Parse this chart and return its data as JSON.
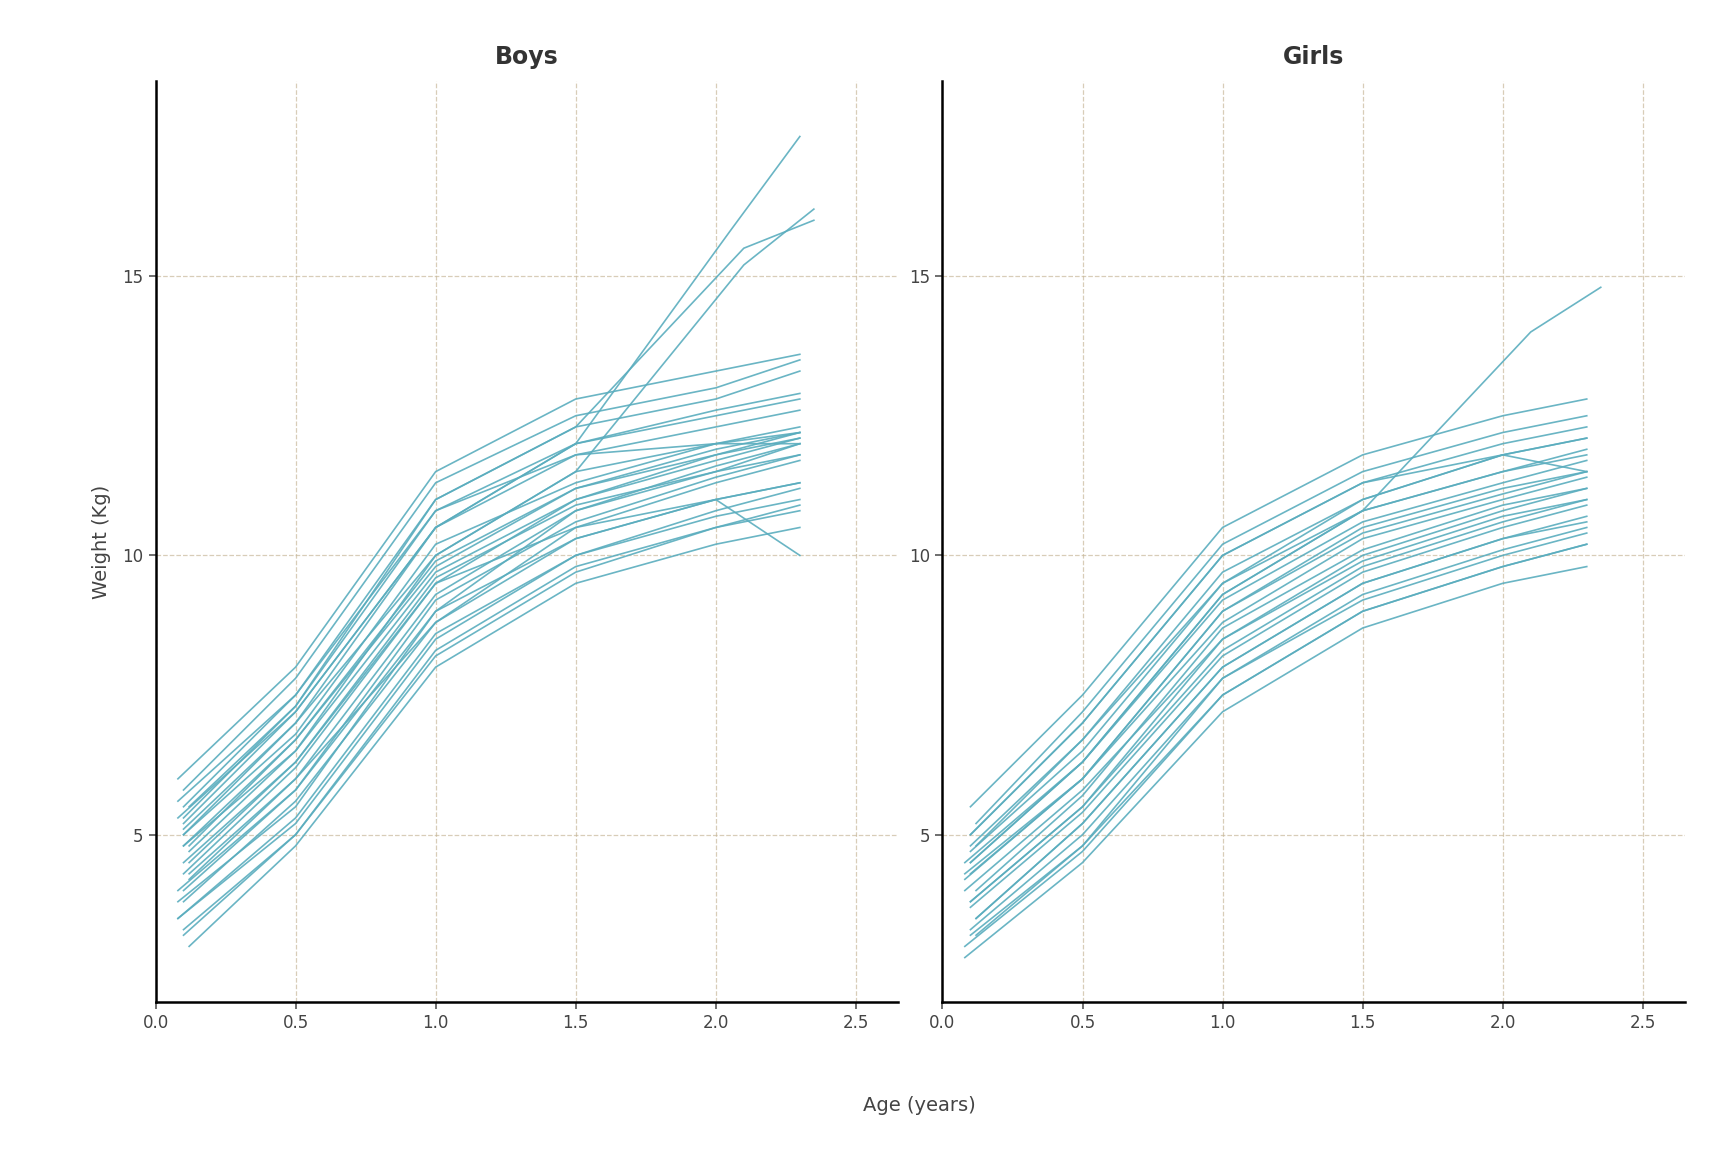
{
  "title_boys": "Boys",
  "title_girls": "Girls",
  "xlabel": "Age (years)",
  "ylabel": "Weight (Kg)",
  "line_color": "#5aadbe",
  "line_alpha": 0.9,
  "line_width": 1.2,
  "background_color": "#ffffff",
  "grid_color": "#c8b89a",
  "grid_linestyle": "--",
  "grid_alpha": 0.7,
  "xlim": [
    0,
    2.65
  ],
  "ylim": [
    2.0,
    18.5
  ],
  "xticks": [
    0.0,
    0.5,
    1.0,
    1.5,
    2.0,
    2.5
  ],
  "yticks": [
    5,
    10,
    15
  ],
  "title_fontsize": 17,
  "label_fontsize": 14,
  "tick_fontsize": 12,
  "boys": [
    {
      "age": [
        0.12,
        0.5,
        1.0,
        1.5,
        2.0,
        2.3
      ],
      "weight": [
        4.3,
        6.0,
        8.8,
        10.5,
        11.3,
        11.7
      ]
    },
    {
      "age": [
        0.08,
        0.5,
        1.0,
        1.5,
        2.0,
        2.3
      ],
      "weight": [
        3.8,
        5.5,
        9.0,
        10.8,
        11.5,
        12.0
      ]
    },
    {
      "age": [
        0.1,
        0.5,
        1.0,
        1.5,
        2.0,
        2.3
      ],
      "weight": [
        5.0,
        7.0,
        10.0,
        11.5,
        12.0,
        12.3
      ]
    },
    {
      "age": [
        0.1,
        0.5,
        1.0,
        1.5,
        2.0,
        2.3
      ],
      "weight": [
        4.5,
        6.3,
        9.5,
        11.0,
        11.8,
        12.2
      ]
    },
    {
      "age": [
        0.08,
        0.5,
        1.0,
        1.5,
        2.0,
        2.3
      ],
      "weight": [
        4.0,
        5.8,
        9.2,
        10.6,
        11.4,
        11.8
      ]
    },
    {
      "age": [
        0.1,
        0.5,
        1.0,
        1.5,
        2.0,
        2.3
      ],
      "weight": [
        5.2,
        7.2,
        10.5,
        12.0,
        12.5,
        12.8
      ]
    },
    {
      "age": [
        0.12,
        0.5,
        1.0,
        1.5,
        2.0,
        2.3
      ],
      "weight": [
        4.8,
        6.7,
        9.8,
        11.2,
        11.9,
        12.2
      ]
    },
    {
      "age": [
        0.1,
        0.5,
        1.0,
        1.5,
        2.0,
        2.3
      ],
      "weight": [
        5.5,
        7.5,
        11.0,
        12.3,
        12.8,
        13.3
      ]
    },
    {
      "age": [
        0.08,
        0.5,
        1.0,
        1.5,
        2.0,
        2.3
      ],
      "weight": [
        3.5,
        5.2,
        8.5,
        10.0,
        10.8,
        11.2
      ]
    },
    {
      "age": [
        0.1,
        0.5,
        1.0,
        1.5,
        2.0,
        2.3
      ],
      "weight": [
        5.8,
        7.8,
        11.3,
        12.5,
        13.0,
        13.5
      ]
    },
    {
      "age": [
        0.12,
        0.5,
        1.0,
        1.5,
        2.0,
        2.3
      ],
      "weight": [
        4.2,
        6.0,
        9.3,
        10.8,
        11.6,
        12.0
      ]
    },
    {
      "age": [
        0.1,
        0.5,
        1.0,
        1.5,
        2.0,
        2.3
      ],
      "weight": [
        3.2,
        5.0,
        8.3,
        9.8,
        10.5,
        10.8
      ]
    },
    {
      "age": [
        0.08,
        0.5,
        1.0,
        1.5,
        2.0,
        2.3
      ],
      "weight": [
        6.0,
        8.0,
        11.5,
        12.8,
        13.3,
        13.6
      ]
    },
    {
      "age": [
        0.1,
        0.5,
        1.0,
        1.5,
        2.0,
        2.3
      ],
      "weight": [
        5.3,
        7.3,
        10.8,
        12.0,
        12.6,
        12.9
      ]
    },
    {
      "age": [
        0.12,
        0.5,
        1.0,
        1.5,
        2.0,
        2.3
      ],
      "weight": [
        4.7,
        6.5,
        9.7,
        11.0,
        11.7,
        12.1
      ]
    },
    {
      "age": [
        0.1,
        0.5,
        1.0,
        1.5,
        2.0,
        2.3
      ],
      "weight": [
        3.8,
        5.6,
        8.8,
        10.3,
        11.0,
        11.3
      ]
    },
    {
      "age": [
        0.08,
        0.5,
        1.0,
        1.5,
        2.0,
        2.3
      ],
      "weight": [
        5.6,
        7.5,
        10.8,
        11.8,
        12.0,
        12.0
      ]
    },
    {
      "age": [
        0.1,
        0.5,
        1.0,
        1.5,
        2.0,
        2.3
      ],
      "weight": [
        4.3,
        6.2,
        9.5,
        10.5,
        11.0,
        10.0
      ]
    },
    {
      "age": [
        0.12,
        0.5,
        1.0,
        1.5,
        2.0,
        2.3
      ],
      "weight": [
        3.0,
        4.8,
        8.0,
        9.5,
        10.2,
        10.5
      ]
    },
    {
      "age": [
        0.1,
        0.5,
        1.0,
        1.5,
        2.0,
        2.3
      ],
      "weight": [
        4.0,
        5.8,
        9.0,
        10.3,
        11.0,
        11.3
      ]
    },
    {
      "age": [
        0.08,
        0.5,
        1.0,
        1.5,
        2.0,
        2.3
      ],
      "weight": [
        3.5,
        5.3,
        8.6,
        10.0,
        10.7,
        11.0
      ]
    },
    {
      "age": [
        0.1,
        0.5,
        1.0,
        1.5,
        2.0,
        2.3
      ],
      "weight": [
        5.0,
        6.8,
        10.2,
        11.3,
        12.0,
        12.2
      ]
    },
    {
      "age": [
        0.12,
        0.5,
        1.0,
        1.5,
        2.0,
        2.3
      ],
      "weight": [
        4.5,
        6.3,
        9.6,
        10.9,
        11.5,
        11.8
      ]
    },
    {
      "age": [
        0.1,
        0.5,
        1.0,
        1.5,
        2.0,
        2.3
      ],
      "weight": [
        3.3,
        5.0,
        8.2,
        9.7,
        10.5,
        10.9
      ]
    },
    {
      "age": [
        0.08,
        0.5,
        1.0,
        1.5,
        2.0,
        2.3
      ],
      "weight": [
        5.3,
        7.2,
        10.5,
        11.8,
        12.3,
        12.6
      ]
    },
    {
      "age": [
        0.1,
        0.5,
        1.0,
        1.5,
        2.0,
        2.3
      ],
      "weight": [
        4.8,
        6.7,
        9.9,
        11.2,
        11.8,
        12.1
      ]
    },
    {
      "age": [
        0.12,
        0.5,
        1.0,
        1.5,
        2.1,
        2.35
      ],
      "weight": [
        5.5,
        7.3,
        11.0,
        12.3,
        15.5,
        16.0
      ]
    },
    {
      "age": [
        0.1,
        0.5,
        1.0,
        1.5,
        2.05,
        2.3
      ],
      "weight": [
        5.1,
        7.0,
        10.5,
        12.0,
        15.8,
        17.5
      ]
    },
    {
      "age": [
        0.1,
        0.5,
        1.0,
        1.5,
        2.1,
        2.35
      ],
      "weight": [
        4.8,
        6.5,
        10.0,
        11.5,
        15.2,
        16.2
      ]
    }
  ],
  "girls": [
    {
      "age": [
        0.12,
        0.5,
        1.0,
        1.5,
        2.0,
        2.3
      ],
      "weight": [
        3.2,
        4.8,
        7.8,
        9.3,
        10.1,
        10.5
      ]
    },
    {
      "age": [
        0.1,
        0.5,
        1.0,
        1.5,
        2.0,
        2.3
      ],
      "weight": [
        3.8,
        5.5,
        8.3,
        9.8,
        10.6,
        11.0
      ]
    },
    {
      "age": [
        0.08,
        0.5,
        1.0,
        1.5,
        2.0,
        2.3
      ],
      "weight": [
        4.2,
        6.0,
        9.0,
        10.5,
        11.2,
        11.5
      ]
    },
    {
      "age": [
        0.1,
        0.5,
        1.0,
        1.5,
        2.0,
        2.3
      ],
      "weight": [
        4.5,
        6.3,
        9.3,
        10.8,
        11.5,
        11.8
      ]
    },
    {
      "age": [
        0.12,
        0.5,
        1.0,
        1.5,
        2.0,
        2.3
      ],
      "weight": [
        3.5,
        5.2,
        8.0,
        9.5,
        10.3,
        10.6
      ]
    },
    {
      "age": [
        0.1,
        0.5,
        1.0,
        1.5,
        2.0,
        2.3
      ],
      "weight": [
        4.8,
        6.7,
        9.5,
        11.0,
        11.8,
        12.1
      ]
    },
    {
      "age": [
        0.08,
        0.5,
        1.0,
        1.5,
        2.0,
        2.3
      ],
      "weight": [
        3.0,
        4.7,
        7.5,
        9.0,
        9.8,
        10.2
      ]
    },
    {
      "age": [
        0.1,
        0.5,
        1.0,
        1.5,
        2.0,
        2.3
      ],
      "weight": [
        5.0,
        7.0,
        10.0,
        11.3,
        12.0,
        12.3
      ]
    },
    {
      "age": [
        0.12,
        0.5,
        1.0,
        1.5,
        2.0,
        2.3
      ],
      "weight": [
        4.0,
        5.7,
        8.7,
        10.1,
        10.9,
        11.2
      ]
    },
    {
      "age": [
        0.1,
        0.5,
        1.0,
        1.5,
        2.0,
        2.3
      ],
      "weight": [
        3.3,
        5.0,
        7.8,
        9.2,
        10.0,
        10.4
      ]
    },
    {
      "age": [
        0.08,
        0.5,
        1.0,
        1.5,
        2.0,
        2.3
      ],
      "weight": [
        4.5,
        6.3,
        9.2,
        10.6,
        11.3,
        11.7
      ]
    },
    {
      "age": [
        0.1,
        0.5,
        1.0,
        1.5,
        2.0,
        2.3
      ],
      "weight": [
        3.7,
        5.4,
        8.2,
        9.7,
        10.5,
        10.9
      ]
    },
    {
      "age": [
        0.12,
        0.5,
        1.0,
        1.5,
        2.0,
        2.3
      ],
      "weight": [
        5.2,
        7.2,
        10.2,
        11.5,
        12.2,
        12.5
      ]
    },
    {
      "age": [
        0.1,
        0.5,
        1.0,
        1.5,
        2.0,
        2.3
      ],
      "weight": [
        4.3,
        6.0,
        8.8,
        10.3,
        11.0,
        11.4
      ]
    },
    {
      "age": [
        0.08,
        0.5,
        1.0,
        1.5,
        2.0,
        2.3
      ],
      "weight": [
        2.8,
        4.5,
        7.2,
        8.7,
        9.5,
        9.8
      ]
    },
    {
      "age": [
        0.1,
        0.5,
        1.0,
        1.5,
        2.0,
        2.3
      ],
      "weight": [
        4.7,
        6.5,
        9.5,
        10.8,
        11.5,
        11.9
      ]
    },
    {
      "age": [
        0.12,
        0.5,
        1.0,
        1.5,
        2.0,
        2.3
      ],
      "weight": [
        3.5,
        5.2,
        8.0,
        9.5,
        10.3,
        10.7
      ]
    },
    {
      "age": [
        0.1,
        0.5,
        1.0,
        1.5,
        2.0,
        2.3
      ],
      "weight": [
        5.5,
        7.5,
        10.5,
        11.8,
        12.5,
        12.8
      ]
    },
    {
      "age": [
        0.08,
        0.5,
        1.0,
        1.5,
        2.0,
        2.3
      ],
      "weight": [
        4.0,
        5.8,
        8.5,
        10.0,
        10.8,
        11.2
      ]
    },
    {
      "age": [
        0.1,
        0.5,
        1.0,
        1.5,
        2.0,
        2.3
      ],
      "weight": [
        3.2,
        4.8,
        7.5,
        9.0,
        9.8,
        10.2
      ]
    },
    {
      "age": [
        0.12,
        0.5,
        1.0,
        1.5,
        2.0,
        2.3
      ],
      "weight": [
        4.8,
        6.7,
        9.7,
        11.0,
        11.8,
        12.1
      ]
    },
    {
      "age": [
        0.1,
        0.5,
        1.0,
        1.5,
        2.0,
        2.3
      ],
      "weight": [
        3.8,
        5.5,
        8.5,
        9.9,
        10.7,
        11.0
      ]
    },
    {
      "age": [
        0.08,
        0.5,
        1.0,
        1.5,
        2.0,
        2.3
      ],
      "weight": [
        4.3,
        6.0,
        9.0,
        10.4,
        11.1,
        11.5
      ]
    },
    {
      "age": [
        0.1,
        0.5,
        1.0,
        1.5,
        2.0,
        2.3
      ],
      "weight": [
        5.0,
        7.0,
        10.0,
        11.3,
        11.8,
        11.5
      ]
    },
    {
      "age": [
        0.1,
        0.5,
        1.0,
        1.5,
        2.1,
        2.35
      ],
      "weight": [
        4.5,
        6.3,
        9.3,
        10.8,
        14.0,
        14.8
      ]
    }
  ]
}
